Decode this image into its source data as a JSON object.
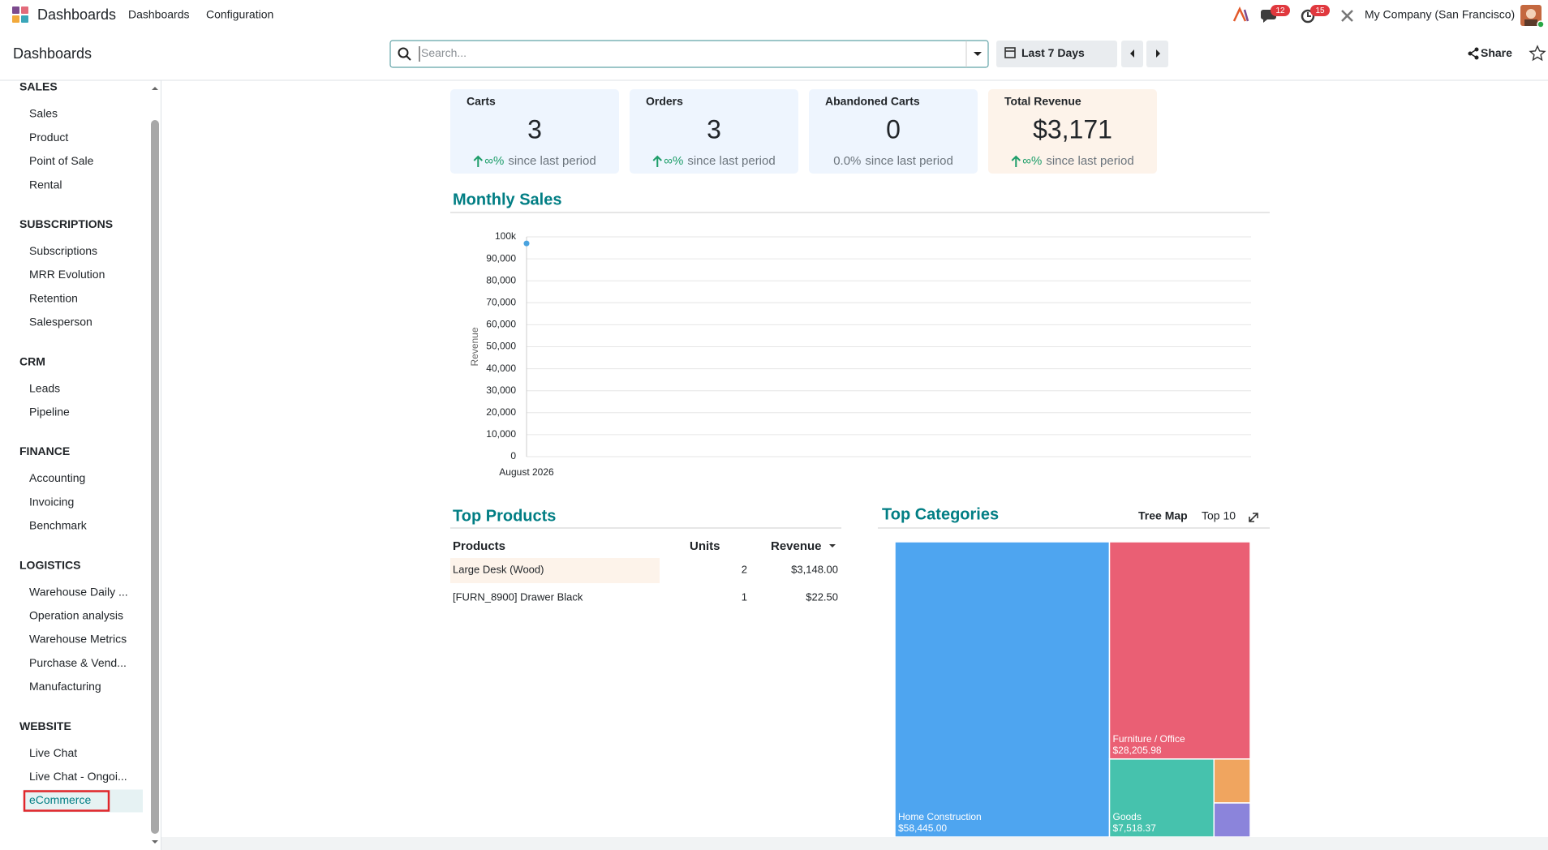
{
  "navbar": {
    "app_name": "Dashboards",
    "menus": [
      "Dashboards",
      "Configuration"
    ],
    "notifications": [
      12,
      15
    ],
    "company": "My Company (San Francisco)"
  },
  "control_panel": {
    "breadcrumb": "Dashboards",
    "search_placeholder": "Search...",
    "date_filter": "Last 7 Days",
    "share": "Share"
  },
  "sidebar": {
    "sections": [
      {
        "title": "SALES",
        "items": [
          {
            "label": "Sales"
          },
          {
            "label": "Product"
          },
          {
            "label": "Point of Sale"
          },
          {
            "label": "Rental"
          }
        ]
      },
      {
        "title": "SUBSCRIPTIONS",
        "items": [
          {
            "label": "Subscriptions"
          },
          {
            "label": "MRR Evolution"
          },
          {
            "label": "Retention"
          },
          {
            "label": "Salesperson"
          }
        ]
      },
      {
        "title": "CRM",
        "items": [
          {
            "label": "Leads"
          },
          {
            "label": "Pipeline"
          }
        ]
      },
      {
        "title": "FINANCE",
        "items": [
          {
            "label": "Accounting"
          },
          {
            "label": "Invoicing"
          },
          {
            "label": "Benchmark"
          }
        ]
      },
      {
        "title": "LOGISTICS",
        "items": [
          {
            "label": "Warehouse Daily ..."
          },
          {
            "label": "Operation analysis"
          },
          {
            "label": "Warehouse Metrics"
          },
          {
            "label": "Purchase & Vend..."
          },
          {
            "label": "Manufacturing"
          }
        ]
      },
      {
        "title": "WEBSITE",
        "items": [
          {
            "label": "Live Chat"
          },
          {
            "label": "Live Chat - Ongoi..."
          },
          {
            "label": "eCommerce",
            "active": true
          }
        ]
      }
    ]
  },
  "kpis": [
    {
      "title": "Carts",
      "value": 3,
      "trend": "∞%",
      "trend_up": true,
      "note": "since last period"
    },
    {
      "title": "Orders",
      "value": 3,
      "trend": "∞%",
      "trend_up": true,
      "note": "since last period"
    },
    {
      "title": "Abandoned Carts",
      "value": 0,
      "trend": "0.0%",
      "trend_up": false,
      "note": "since last period"
    },
    {
      "title": "Total Revenue",
      "value": 3171,
      "value_label": "$3,171",
      "trend": "∞%",
      "trend_up": true,
      "note": "since last period",
      "highlight": true
    }
  ],
  "monthly_sales": {
    "type": "line",
    "title": "Monthly Sales",
    "y_label": "Revenue",
    "categories": [
      "August 2026"
    ],
    "values": [
      97000
    ],
    "color": "#4aa3df",
    "ylim": [
      0,
      100000
    ],
    "yticks": [
      0,
      {
        "value": 10000,
        "label": "10,000"
      },
      {
        "value": 20000,
        "label": "20,000"
      },
      {
        "value": 30000,
        "label": "30,000"
      },
      {
        "value": 40000,
        "label": "40,000"
      },
      {
        "value": 50000,
        "label": "50,000"
      },
      {
        "value": 60000,
        "label": "60,000"
      },
      {
        "value": 70000,
        "label": "70,000"
      },
      {
        "value": 80000,
        "label": "80,000"
      },
      {
        "value": 90000,
        "label": "90,000"
      },
      {
        "value": 100000,
        "label": "100k"
      }
    ],
    "grid": true
  },
  "top_products": {
    "title": "Top Products",
    "columns": [
      "Products",
      "Units",
      "Revenue"
    ],
    "rows": [
      {
        "product": "Large Desk (Wood)",
        "units": 2,
        "revenue": "$3,148.00"
      },
      {
        "product": "[FURN_8900] Drawer Black",
        "units": 1,
        "revenue": "$22.50"
      }
    ]
  },
  "top_categories": {
    "type": "treemap",
    "title": "Top Categories",
    "options": [
      "Tree Map",
      "Top 10"
    ],
    "items": [
      {
        "name": "Home Construction",
        "value": 58445,
        "value_label": "$58,445.00",
        "color": "#4ea5f0"
      },
      {
        "name": "Furniture / Office",
        "value": 28205.98,
        "value_label": "$28,205.98",
        "color": "#ea5f74"
      },
      {
        "name": "Goods",
        "value": 7518.37,
        "value_label": "$7,518.37",
        "color": "#46c2ad"
      },
      {
        "name": null,
        "value": 1470,
        "color": "#f0a55f"
      },
      {
        "name": null,
        "value": 1140,
        "color": "#8b84db"
      }
    ]
  }
}
